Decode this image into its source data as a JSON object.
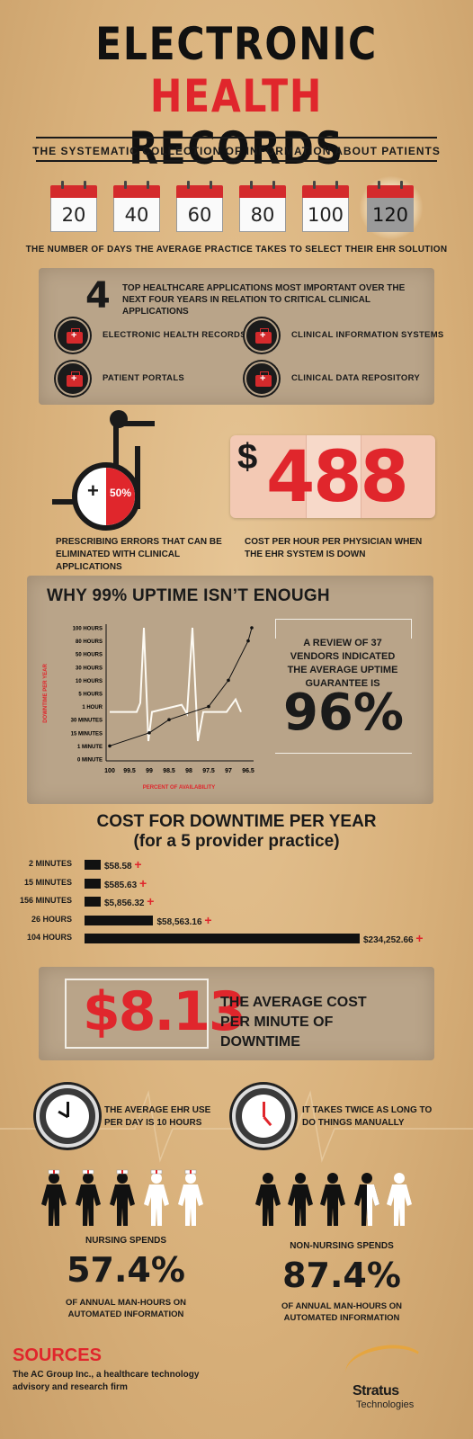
{
  "header": {
    "title_line1": "ELECTRONIC",
    "title_line2_red": "HEALTH",
    "title_line2_black": " RECORDS",
    "subtitle": "THE SYSTEMATIC COLLECTION OF INFORMATION ABOUT PATIENTS"
  },
  "calendars": {
    "days": [
      "20",
      "40",
      "60",
      "80",
      "100",
      "120"
    ],
    "caption": "THE NUMBER OF DAYS THE AVERAGE PRACTICE TAKES TO SELECT THEIR EHR SOLUTION"
  },
  "apps": {
    "number": "4",
    "heading": "TOP HEALTHCARE APPLICATIONS MOST IMPORTANT OVER THE NEXT FOUR YEARS IN RELATION TO CRITICAL CLINICAL APPLICATIONS",
    "items": [
      "ELECTRONIC HEALTH RECORDS",
      "CLINICAL INFORMATION SYSTEMS",
      "PATIENT PORTALS",
      "CLINICAL DATA REPOSITORY"
    ]
  },
  "errors": {
    "plus": "+",
    "percent": "50%",
    "text": "PRESCRIBING ERRORS THAT CAN BE ELIMINATED WITH CLINICAL APPLICATIONS"
  },
  "price": {
    "dollar": "$",
    "amount": "488",
    "text": "COST PER HOUR PER PHYSICIAN WHEN THE EHR SYSTEM IS DOWN"
  },
  "uptime": {
    "title": "WHY 99% UPTIME ISN’T ENOUGH",
    "review_text": "A REVIEW OF 37 VENDORS INDICATED THE AVERAGE UPTIME GUARANTEE IS",
    "review_pct": "96%"
  },
  "chart_data": [
    {
      "type": "line",
      "xlabel": "PERCENT OF AVAILABILITY",
      "ylabel": "DOWNTIME PER YEAR",
      "x_ticks": [
        "100",
        "99.5",
        "99",
        "98.5",
        "98",
        "97.5",
        "97",
        "96.5"
      ],
      "y_ticks": [
        "0 MINUTE",
        "1 MINUTE",
        "15 MINUTES",
        "30 MINUTES",
        "1 HOUR",
        "5 HOURS",
        "10 HOURS",
        "30 HOURS",
        "50 HOURS",
        "80 HOURS",
        "100 HOURS"
      ],
      "points": [
        {
          "x": "100",
          "y": "1 MINUTE"
        },
        {
          "x": "99",
          "y": "15 MINUTES"
        },
        {
          "x": "98.5",
          "y": "30 MINUTES"
        },
        {
          "x": "97.5",
          "y": "1 HOUR"
        },
        {
          "x": "97",
          "y": "10 HOURS"
        },
        {
          "x": "96.5",
          "y": "80 HOURS"
        },
        {
          "x": "96.5",
          "y": "100 HOURS"
        }
      ]
    },
    {
      "type": "bar",
      "title": "COST FOR DOWNTIME PER YEAR",
      "subtitle": "(for a 5 provider practice)",
      "categories": [
        "2 MINUTES",
        "15 MINUTES",
        "156 MINUTES",
        "26 HOURS",
        "104 HOURS"
      ],
      "values": [
        58.58,
        585.63,
        5856.32,
        58563.16,
        234252.66
      ],
      "labels": [
        "$58.58",
        "$585.63",
        "$5,856.32",
        "$58,563.16",
        "$234,252.66"
      ],
      "plus": "+"
    }
  ],
  "cost_minute": {
    "amount": "$8.13",
    "text": "THE AVERAGE COST PER MINUTE OF DOWNTIME"
  },
  "clocks": {
    "left_text": "THE AVERAGE EHR USE PER DAY IS 10 HOURS",
    "right_text": "IT TAKES TWICE AS LONG TO DO THINGS MANUALLY"
  },
  "nursing": {
    "head": "NURSING SPENDS",
    "pct": "57.4%",
    "sub": "OF ANNUAL MAN-HOURS ON AUTOMATED INFORMATION"
  },
  "non_nursing": {
    "head": "NON-NURSING SPENDS",
    "pct": "87.4%",
    "sub": "OF ANNUAL MAN-HOURS ON AUTOMATED INFORMATION"
  },
  "sources": {
    "title": "SOURCES",
    "text": "The AC Group Inc., a healthcare technology advisory and research firm",
    "brand": "Stratus",
    "brand_sub": "Technologies"
  },
  "colors": {
    "accent": "#e0262c",
    "paper": "#d9b37e",
    "panel": "#b9a489",
    "ink": "#1a1a1a"
  }
}
